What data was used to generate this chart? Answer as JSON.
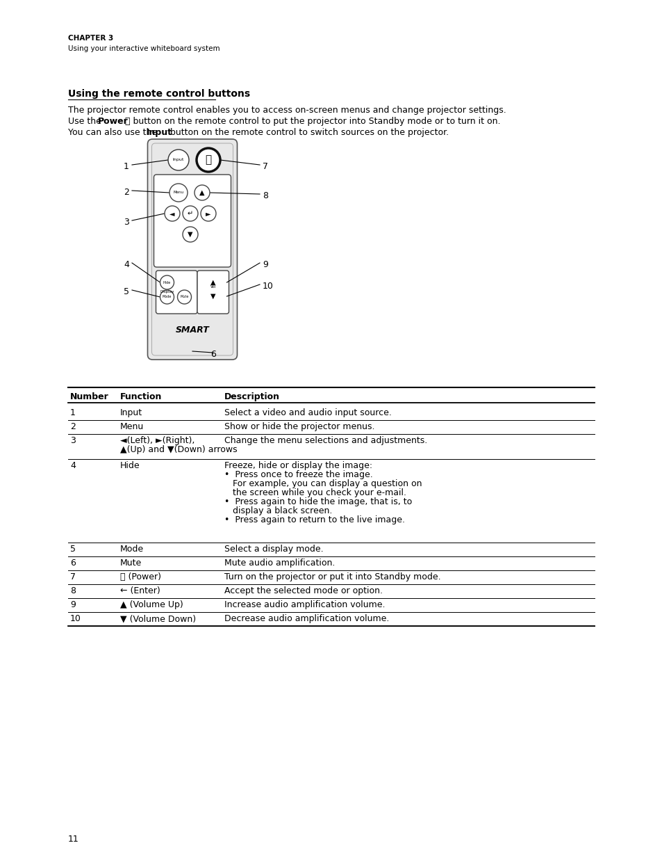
{
  "page_title": "CHAPTER 3",
  "page_subtitle": "Using your interactive whiteboard system",
  "section_title": "Using the remote control buttons",
  "intro_text1": "The projector remote control enables you to access on-screen menus and change projector settings.",
  "intro_text2_pre": "Use the ",
  "intro_text2_bold": "Power",
  "intro_text2_sym": " ⏽",
  "intro_text2_post": " button on the remote control to put the projector into Standby mode or to turn it on.",
  "intro_text3_pre": "You can also use the ",
  "intro_text3_bold": "Input",
  "intro_text3_post": " button on the remote control to switch sources on the projector.",
  "table_headers": [
    "Number",
    "Function",
    "Description"
  ],
  "table_rows": [
    [
      "1",
      "Input",
      "Select a video and audio input source."
    ],
    [
      "2",
      "Menu",
      "Show or hide the projector menus."
    ],
    [
      "3",
      "◄(Left), ►(Right),\n▲(Up) and ▼(Down) arrows",
      "Change the menu selections and adjustments."
    ],
    [
      "4",
      "Hide",
      "Freeze, hide or display the image:\n• Press once to freeze the image.\n  For example, you can display a question on\n  the screen while you check your e-mail.\n• Press again to hide the image, that is, to\n  display a black screen.\n• Press again to return to the live image."
    ],
    [
      "5",
      "Mode",
      "Select a display mode."
    ],
    [
      "6",
      "Mute",
      "Mute audio amplification."
    ],
    [
      "7",
      "⏽ (Power)",
      "Turn on the projector or put it into Standby mode."
    ],
    [
      "8",
      "← (Enter)",
      "Accept the selected mode or option."
    ],
    [
      "9",
      "▲ (Volume Up)",
      "Increase audio amplification volume."
    ],
    [
      "10",
      "▼ (Volume Down)",
      "Decrease audio amplification volume."
    ]
  ],
  "page_number": "11",
  "bg_color": "#ffffff",
  "text_color": "#000000"
}
